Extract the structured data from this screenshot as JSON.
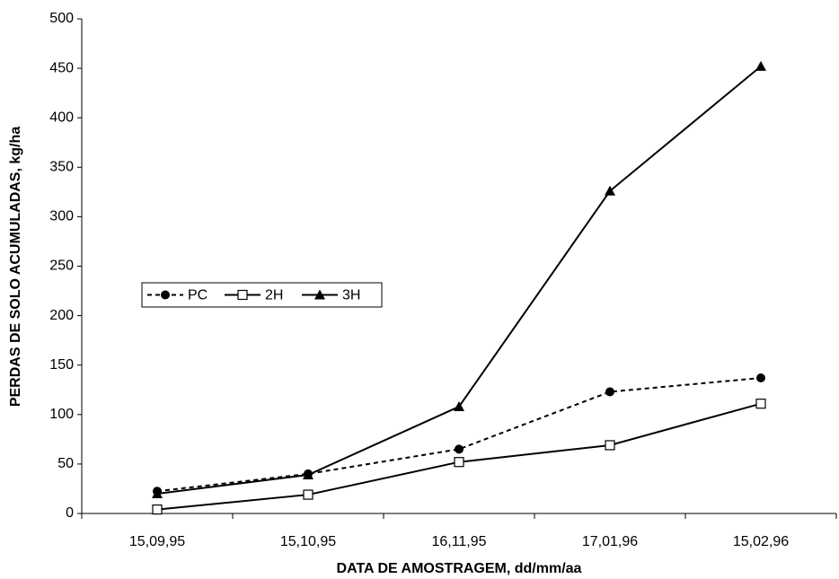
{
  "chart_data": {
    "type": "line",
    "x_label": "DATA DE AMOSTRAGEM, dd/mm/aa",
    "y_label": "PERDAS DE SOLO ACUMULADAS, kg/ha",
    "categories": [
      "15,09,95",
      "15,10,95",
      "16,11,95",
      "17,01,96",
      "15,02,96"
    ],
    "series": [
      {
        "name": "PC",
        "color": "#000000",
        "line_style": "dashed",
        "marker": "circle",
        "values": [
          22.5,
          40,
          65,
          123,
          137
        ]
      },
      {
        "name": "2H",
        "color": "#000000",
        "line_style": "solid",
        "marker": "open-square",
        "values": [
          4,
          19,
          52,
          69,
          111
        ]
      },
      {
        "name": "3H",
        "color": "#000000",
        "line_style": "solid",
        "marker": "triangle",
        "values": [
          20,
          39,
          108,
          326,
          452
        ]
      }
    ],
    "ylim": [
      0,
      500
    ],
    "yticks": [
      0,
      50,
      100,
      150,
      200,
      250,
      300,
      350,
      400,
      450,
      500
    ],
    "grid": false
  }
}
